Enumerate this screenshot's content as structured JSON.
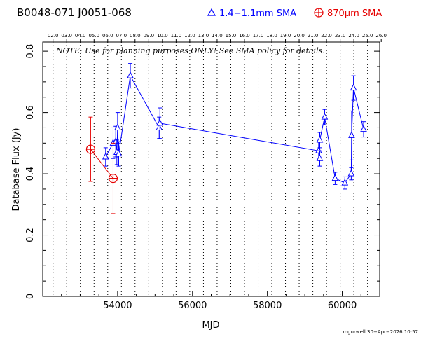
{
  "header": {
    "source_names": "B0048-071   J0051-068",
    "legend_blue": "1.4−1.1mm SMA",
    "legend_red": "870μm SMA",
    "blue_color": "#0000ff",
    "red_color": "#e60000"
  },
  "note": "NOTE: Use for planning purposes ONLY!  See SMA policy for details.",
  "footer": "mgurwell 30−Apr−2026 10:57",
  "chart_data": {
    "type": "scatter",
    "title": "",
    "xlabel": "MJD",
    "ylabel": "Database Flux (Jy)",
    "xlim": [
      52000,
      61000
    ],
    "ylim": [
      0,
      0.83
    ],
    "x_ticks": [
      54000,
      56000,
      58000,
      60000
    ],
    "y_ticks": [
      0,
      0.2,
      0.4,
      0.6,
      0.8
    ],
    "y_tick_labels": [
      "0",
      "0.2",
      "0.4",
      "0.6",
      "0.8"
    ],
    "grid": "vertical dotted lines at year boundaries",
    "top_axis_labels": [
      "02.0",
      "03.0",
      "04.0",
      "05.0",
      "06.0",
      "07.0",
      "08.0",
      "09.0",
      "10.0",
      "11.0",
      "12.0",
      "13.0",
      "14.0",
      "15.0",
      "16.0",
      "17.0",
      "18.0",
      "19.0",
      "20.0",
      "21.0",
      "22.0",
      "23.0",
      "24.0",
      "25.0",
      "26.0"
    ],
    "year_boundaries_mjd": [
      52275,
      52640,
      53005,
      53371,
      53736,
      54101,
      54466,
      54832,
      55197,
      55562,
      55927,
      56293,
      56658,
      57023,
      57388,
      57754,
      58119,
      58484,
      58849,
      59215,
      59580,
      59945,
      60310,
      60676,
      61041
    ],
    "series": [
      {
        "name": "1.4−1.1mm SMA",
        "color": "#0000ff",
        "marker": "triangle",
        "connected": true,
        "points": [
          {
            "x": 53680,
            "y": 0.455,
            "err": 0.03
          },
          {
            "x": 53880,
            "y": 0.5,
            "err": 0.05
          },
          {
            "x": 53950,
            "y": 0.505,
            "err": 0.05
          },
          {
            "x": 53980,
            "y": 0.47,
            "err": 0.04
          },
          {
            "x": 54000,
            "y": 0.55,
            "err": 0.05
          },
          {
            "x": 54030,
            "y": 0.465,
            "err": 0.04
          },
          {
            "x": 54340,
            "y": 0.72,
            "err": 0.04
          },
          {
            "x": 55110,
            "y": 0.55,
            "err": 0.035
          },
          {
            "x": 55130,
            "y": 0.565,
            "err": 0.05
          },
          {
            "x": 59370,
            "y": 0.475,
            "err": 0.03
          },
          {
            "x": 59400,
            "y": 0.45,
            "err": 0.025
          },
          {
            "x": 59400,
            "y": 0.51,
            "err": 0.025
          },
          {
            "x": 59530,
            "y": 0.585,
            "err": 0.025
          },
          {
            "x": 59810,
            "y": 0.385,
            "err": 0.02
          },
          {
            "x": 60070,
            "y": 0.37,
            "err": 0.02
          },
          {
            "x": 60240,
            "y": 0.4,
            "err": 0.02
          },
          {
            "x": 60250,
            "y": 0.525,
            "err": 0.08
          },
          {
            "x": 60300,
            "y": 0.68,
            "err": 0.04
          },
          {
            "x": 60570,
            "y": 0.545,
            "err": 0.025
          }
        ]
      },
      {
        "name": "870μm SMA",
        "color": "#e60000",
        "marker": "circle-plus",
        "connected": true,
        "points": [
          {
            "x": 53280,
            "y": 0.48,
            "err": 0.105
          },
          {
            "x": 53880,
            "y": 0.385,
            "err": 0.115
          }
        ]
      }
    ]
  }
}
